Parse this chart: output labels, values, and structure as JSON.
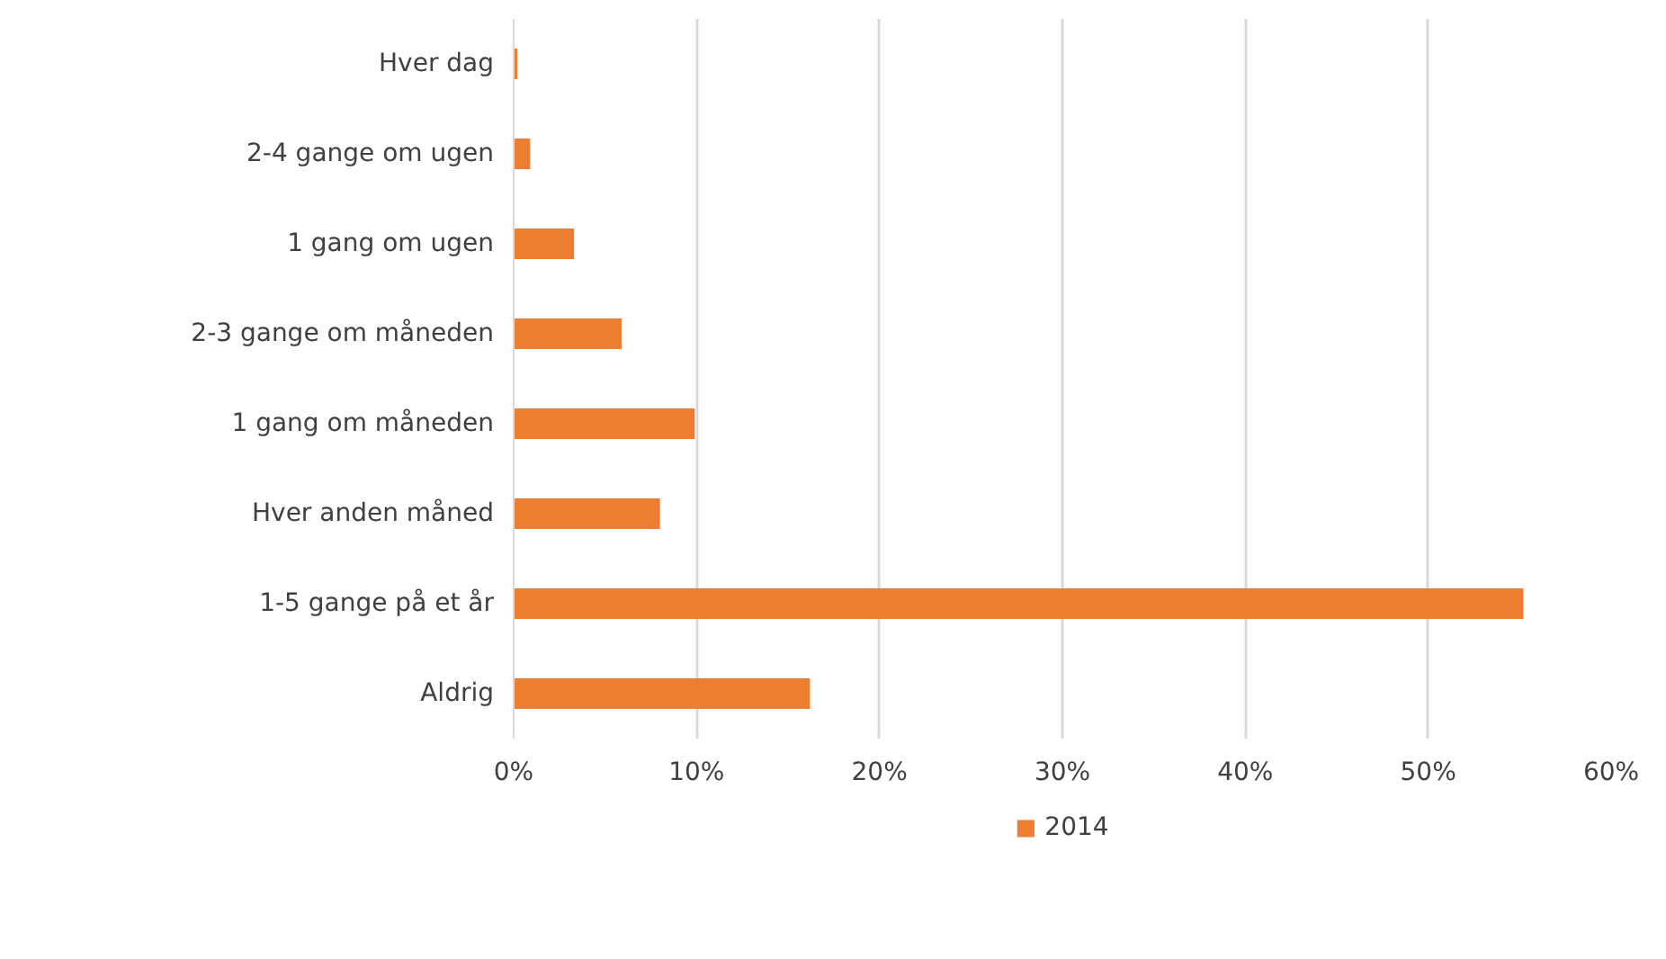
{
  "chart_data": {
    "type": "bar",
    "orientation": "horizontal",
    "categories": [
      "Hver dag",
      "2-4 gange om ugen",
      "1 gang om ugen",
      "2-3 gange om måneden",
      "1 gang om måneden",
      "Hver anden måned",
      "1-5 gange på et år",
      "Aldrig"
    ],
    "series": [
      {
        "name": "2014",
        "color": "#ed7d31",
        "values": [
          0.2,
          0.9,
          3.3,
          5.9,
          9.9,
          8.0,
          55.2,
          16.2
        ]
      }
    ],
    "xlim": [
      0,
      60
    ],
    "xticks": [
      {
        "value": 0,
        "label": "0%"
      },
      {
        "value": 10,
        "label": "10%"
      },
      {
        "value": 20,
        "label": "20%"
      },
      {
        "value": 30,
        "label": "30%"
      },
      {
        "value": 40,
        "label": "40%"
      },
      {
        "value": 50,
        "label": "50%"
      },
      {
        "value": 60,
        "label": "60%"
      }
    ],
    "grid": "x",
    "legend": "bottom"
  }
}
